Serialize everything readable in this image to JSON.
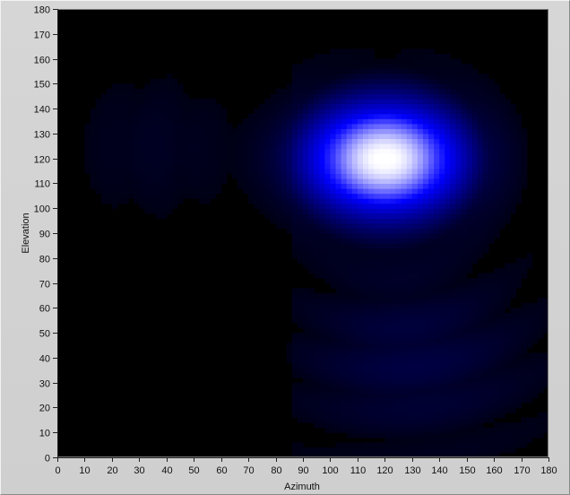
{
  "chart_data": {
    "type": "heatmap",
    "title": "",
    "xlabel": "Azimuth",
    "ylabel": "Elevation",
    "xlim": [
      0,
      180
    ],
    "ylim": [
      0,
      180
    ],
    "x_ticks": [
      "0",
      "10",
      "20",
      "30",
      "40",
      "50",
      "60",
      "70",
      "80",
      "90",
      "100",
      "110",
      "120",
      "130",
      "140",
      "150",
      "160",
      "170",
      "180"
    ],
    "y_ticks": [
      "0",
      "10",
      "20",
      "30",
      "40",
      "50",
      "60",
      "70",
      "80",
      "90",
      "100",
      "110",
      "120",
      "130",
      "140",
      "150",
      "160",
      "170",
      "180"
    ],
    "colormap": [
      "#000000",
      "#0000ff",
      "#ffffff"
    ],
    "peak": {
      "azimuth": 120,
      "elevation": 120
    },
    "grid": false
  }
}
